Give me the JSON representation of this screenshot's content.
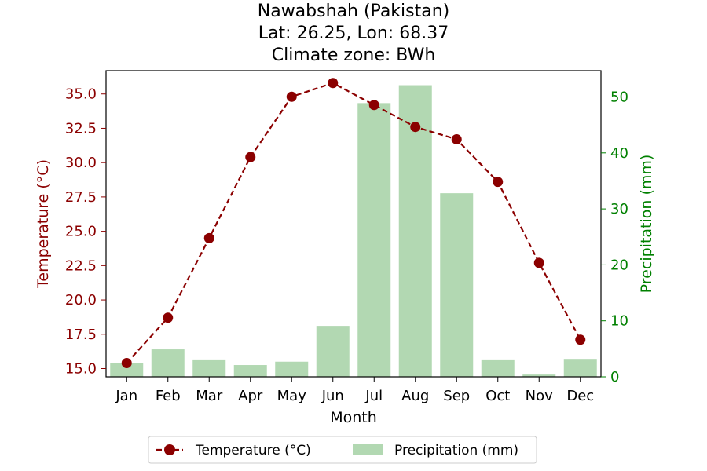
{
  "chart_data": {
    "type": "bar+line",
    "title_lines": [
      "Nawabshah (Pakistan)",
      "Lat: 26.25, Lon: 68.37",
      "Climate zone: BWh"
    ],
    "categories": [
      "Jan",
      "Feb",
      "Mar",
      "Apr",
      "May",
      "Jun",
      "Jul",
      "Aug",
      "Sep",
      "Oct",
      "Nov",
      "Dec"
    ],
    "xlabel": "Month",
    "series": [
      {
        "name": "Temperature (°C)",
        "type": "line",
        "axis": "left",
        "color": "#8b0000",
        "values": [
          15.4,
          18.7,
          24.5,
          30.4,
          34.8,
          35.8,
          34.2,
          32.6,
          31.7,
          28.6,
          22.7,
          17.1
        ]
      },
      {
        "name": "Precipitation (mm)",
        "type": "bar",
        "axis": "right",
        "color": "#b2d8b2",
        "values": [
          2.4,
          4.9,
          3.1,
          2.1,
          2.7,
          9.1,
          48.9,
          52.1,
          32.8,
          3.1,
          0.4,
          3.2
        ]
      }
    ],
    "y_left": {
      "label": "Temperature (°C)",
      "color": "#8b0000",
      "ylim": [
        14.4,
        36.7
      ],
      "ticks": [
        "15.0",
        "17.5",
        "20.0",
        "22.5",
        "25.0",
        "27.5",
        "30.0",
        "32.5",
        "35.0"
      ]
    },
    "y_right": {
      "label": "Precipitation (mm)",
      "color": "#008000",
      "ylim": [
        0,
        54.7
      ],
      "ticks": [
        "0",
        "10",
        "20",
        "30",
        "40",
        "50"
      ]
    },
    "legend": {
      "position": "bottom-center",
      "entries": [
        "Temperature (°C)",
        "Precipitation (mm)"
      ]
    },
    "grid": false
  }
}
